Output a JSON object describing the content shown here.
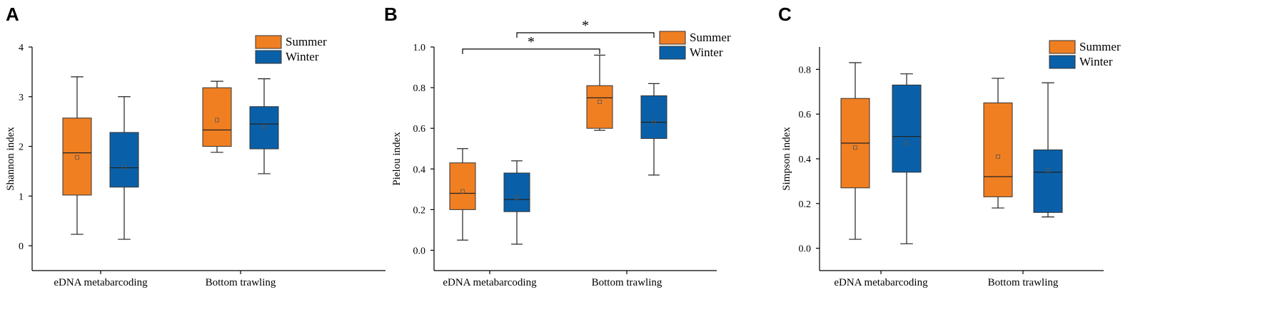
{
  "figure": {
    "series_names": [
      "Summer",
      "Winter"
    ],
    "series_colors": [
      "#F07F22",
      "#0A60A8"
    ],
    "categories": [
      "eDNA metabarcoding",
      "Bottom trawling"
    ]
  },
  "chart_data": [
    {
      "panel": "A",
      "type": "box",
      "ylabel": "Shannon index",
      "xlabel": "",
      "ylim": [
        -0.5,
        4
      ],
      "yticks": [
        "0",
        "1",
        "2",
        "3",
        "4"
      ],
      "categories": [
        "eDNA metabarcoding",
        "Bottom trawling"
      ],
      "series": [
        {
          "name": "Summer",
          "color": "#F07F22",
          "boxes": [
            {
              "min": 0.23,
              "q1": 1.02,
              "median": 1.87,
              "q3": 2.57,
              "max": 3.4,
              "mean": 1.78
            },
            {
              "min": 1.88,
              "q1": 2.0,
              "median": 2.33,
              "q3": 3.18,
              "max": 3.31,
              "mean": 2.53
            }
          ]
        },
        {
          "name": "Winter",
          "color": "#0A60A8",
          "boxes": [
            {
              "min": 0.13,
              "q1": 1.18,
              "median": 1.57,
              "q3": 2.28,
              "max": 3.0,
              "mean": 1.58
            },
            {
              "min": 1.45,
              "q1": 1.95,
              "median": 2.45,
              "q3": 2.8,
              "max": 3.36,
              "mean": 2.4
            }
          ]
        }
      ],
      "significance": []
    },
    {
      "panel": "B",
      "type": "box",
      "ylabel": "Pielou index",
      "xlabel": "",
      "ylim": [
        -0.1,
        1.0
      ],
      "yticks": [
        "0.0",
        "0.2",
        "0.4",
        "0.6",
        "0.8",
        "1.0"
      ],
      "categories": [
        "eDNA metabarcoding",
        "Bottom trawling"
      ],
      "series": [
        {
          "name": "Summer",
          "color": "#F07F22",
          "boxes": [
            {
              "min": 0.05,
              "q1": 0.2,
              "median": 0.28,
              "q3": 0.43,
              "max": 0.5,
              "mean": 0.29
            },
            {
              "min": 0.59,
              "q1": 0.6,
              "median": 0.75,
              "q3": 0.81,
              "max": 0.96,
              "mean": 0.73
            }
          ]
        },
        {
          "name": "Winter",
          "color": "#0A60A8",
          "boxes": [
            {
              "min": 0.03,
              "q1": 0.19,
              "median": 0.25,
              "q3": 0.38,
              "max": 0.44,
              "mean": 0.26
            },
            {
              "min": 0.37,
              "q1": 0.55,
              "median": 0.63,
              "q3": 0.76,
              "max": 0.82,
              "mean": 0.63
            }
          ]
        }
      ],
      "significance": [
        {
          "label": "*",
          "from_category": 0,
          "from_series": 0,
          "to_category": 1,
          "to_series": 0,
          "y": 0.99
        },
        {
          "label": "*",
          "from_category": 0,
          "from_series": 1,
          "to_category": 1,
          "to_series": 1,
          "y": 1.07
        }
      ]
    },
    {
      "panel": "C",
      "type": "box",
      "ylabel": "Simpson index",
      "xlabel": "",
      "ylim": [
        -0.1,
        0.9
      ],
      "yticks": [
        "0.0",
        "0.2",
        "0.4",
        "0.6",
        "0.8"
      ],
      "categories": [
        "eDNA metabarcoding",
        "Bottom trawling"
      ],
      "series": [
        {
          "name": "Summer",
          "color": "#F07F22",
          "boxes": [
            {
              "min": 0.04,
              "q1": 0.27,
              "median": 0.47,
              "q3": 0.67,
              "max": 0.83,
              "mean": 0.45
            },
            {
              "min": 0.18,
              "q1": 0.23,
              "median": 0.32,
              "q3": 0.65,
              "max": 0.76,
              "mean": 0.41
            }
          ]
        },
        {
          "name": "Winter",
          "color": "#0A60A8",
          "boxes": [
            {
              "min": 0.02,
              "q1": 0.34,
              "median": 0.5,
              "q3": 0.73,
              "max": 0.78,
              "mean": 0.47
            },
            {
              "min": 0.14,
              "q1": 0.16,
              "median": 0.34,
              "q3": 0.44,
              "max": 0.74,
              "mean": 0.35
            }
          ]
        }
      ],
      "significance": []
    }
  ]
}
